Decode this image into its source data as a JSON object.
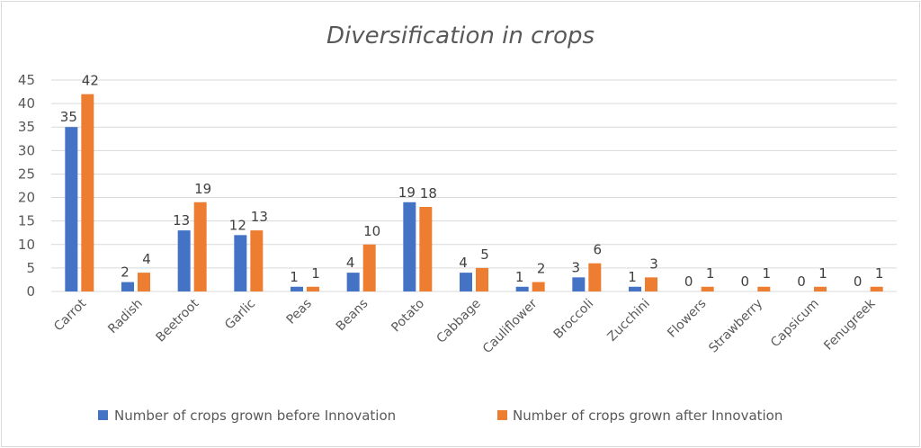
{
  "chart_data": {
    "type": "bar",
    "title": "Diversification in crops",
    "xlabel": "",
    "ylabel": "",
    "ylim": [
      0,
      45
    ],
    "yticks": [
      0,
      5,
      10,
      15,
      20,
      25,
      30,
      35,
      40,
      45
    ],
    "grid": true,
    "legend_position": "bottom",
    "categories": [
      "Carrot",
      "Radish",
      "Beetroot",
      "Garlic",
      "Peas",
      "Beans",
      "Potato",
      "Cabbage",
      "Cauliflower",
      "Broccoli",
      "Zucchini",
      "Flowers",
      "Strawberry",
      "Capsicum",
      "Fenugreek"
    ],
    "series": [
      {
        "name": "Number of crops grown before Innovation",
        "color": "#4472c4",
        "values": [
          35,
          2,
          13,
          12,
          1,
          4,
          19,
          4,
          1,
          3,
          1,
          0,
          0,
          0,
          0
        ]
      },
      {
        "name": "Number of crops grown after Innovation",
        "color": "#ed7d31",
        "values": [
          42,
          4,
          19,
          13,
          1,
          10,
          18,
          5,
          2,
          6,
          3,
          1,
          1,
          1,
          1
        ]
      }
    ]
  }
}
